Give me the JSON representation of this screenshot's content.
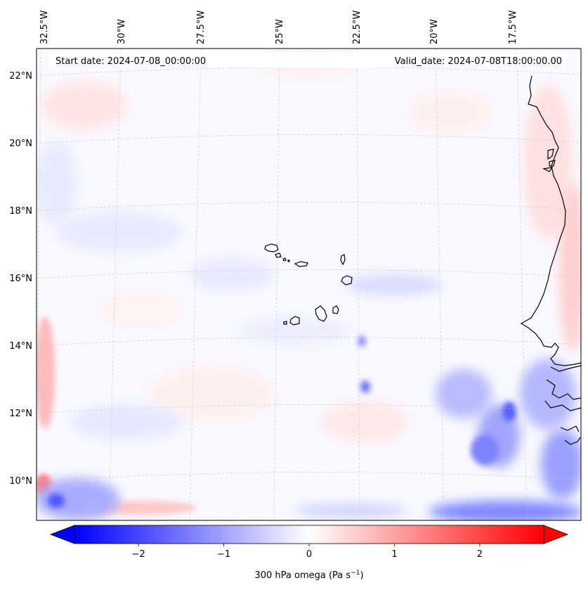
{
  "header": {
    "start_date": "Start date: 2024-07-08_00:00:00",
    "valid_date": "Valid_date: 2024-07-08T18:00:00.00"
  },
  "map": {
    "extent": {
      "lon_min": -33.2,
      "lon_max": -15.2,
      "lat_min": 8.9,
      "lat_max": 22.8
    },
    "longitude_labels": [
      {
        "value": -32.5,
        "text": "32.5°W"
      },
      {
        "value": -30.0,
        "text": "30°W"
      },
      {
        "value": -27.5,
        "text": "27.5°W"
      },
      {
        "value": -25.0,
        "text": "25°W"
      },
      {
        "value": -22.5,
        "text": "22.5°W"
      },
      {
        "value": -20.0,
        "text": "20°W"
      },
      {
        "value": -17.5,
        "text": "17.5°W"
      }
    ],
    "latitude_labels": [
      {
        "value": 22,
        "text": "22°N"
      },
      {
        "value": 20,
        "text": "20°N"
      },
      {
        "value": 18,
        "text": "18°N"
      },
      {
        "value": 16,
        "text": "16°N"
      },
      {
        "value": 14,
        "text": "14°N"
      },
      {
        "value": 12,
        "text": "12°N"
      },
      {
        "value": 10,
        "text": "10°N"
      }
    ],
    "gridlines": true,
    "features": [
      "coastline-icon",
      "cape-verde-islands-icon",
      "west-africa-coast-icon"
    ]
  },
  "colorbar": {
    "label": "300 hPa omega (Pa s",
    "label_superscript": "−1",
    "label_suffix": ")",
    "range": [
      -2.75,
      2.75
    ],
    "ticks": [
      {
        "value": -2,
        "text": "−2"
      },
      {
        "value": -1,
        "text": "−1"
      },
      {
        "value": 0,
        "text": "0"
      },
      {
        "value": 1,
        "text": "1"
      },
      {
        "value": 2,
        "text": "2"
      }
    ],
    "colormap": "bwr",
    "low_color": "#0000ff",
    "mid_color": "#ffffff",
    "high_color": "#ff0000",
    "extend": "both"
  }
}
